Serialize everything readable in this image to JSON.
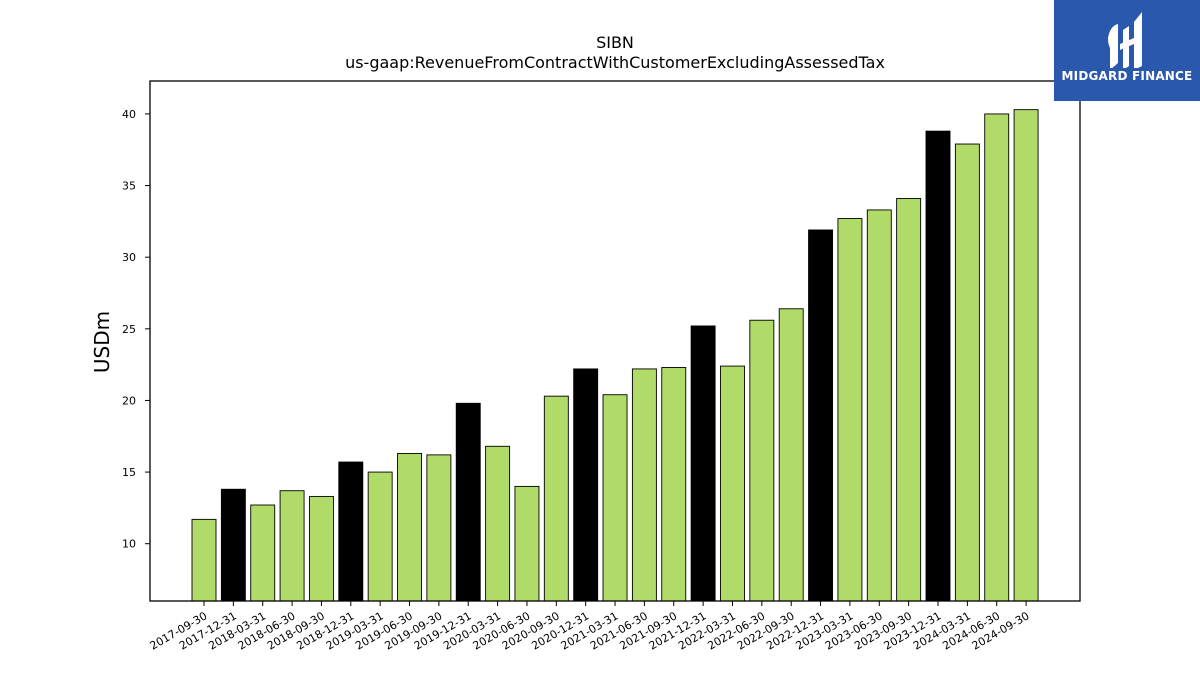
{
  "logo": {
    "text": "MIDGARD FINANCE",
    "icon": "midgard-logo-icon",
    "background": "#2a58ad"
  },
  "chart_data": {
    "type": "bar",
    "title": "SIBN",
    "subtitle": "us-gaap:RevenueFromContractWithCustomerExcludingAssessedTax",
    "xlabel": "",
    "ylabel": "USDm",
    "ylim": [
      6.0,
      42.3
    ],
    "yticks": [
      10,
      15,
      20,
      25,
      30,
      35,
      40
    ],
    "grid": false,
    "colors": {
      "quarter": "#b1db69",
      "year_end": "#000000"
    },
    "categories": [
      "2017-09-30",
      "2017-12-31",
      "2018-03-31",
      "2018-06-30",
      "2018-09-30",
      "2018-12-31",
      "2019-03-31",
      "2019-06-30",
      "2019-09-30",
      "2019-12-31",
      "2020-03-31",
      "2020-06-30",
      "2020-09-30",
      "2020-12-31",
      "2021-03-31",
      "2021-06-30",
      "2021-09-30",
      "2021-12-31",
      "2022-03-31",
      "2022-06-30",
      "2022-09-30",
      "2022-12-31",
      "2023-03-31",
      "2023-06-30",
      "2023-09-30",
      "2023-12-31",
      "2024-03-31",
      "2024-06-30",
      "2024-09-30"
    ],
    "values": [
      11.7,
      13.8,
      12.7,
      13.7,
      13.3,
      15.7,
      15.0,
      16.3,
      16.2,
      19.8,
      16.8,
      14.0,
      20.3,
      22.2,
      20.4,
      22.2,
      22.3,
      25.2,
      22.4,
      25.6,
      26.4,
      31.9,
      32.7,
      33.3,
      34.1,
      38.8,
      37.9,
      40.0,
      40.3
    ]
  }
}
